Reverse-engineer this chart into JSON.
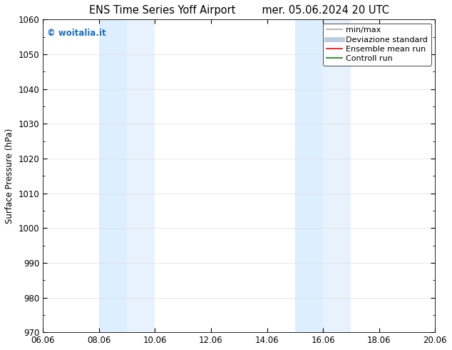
{
  "title": "ENS Time Series Yoff Airport        mer. 05.06.2024 20 UTC",
  "ylabel": "Surface Pressure (hPa)",
  "ylim": [
    970,
    1060
  ],
  "yticks": [
    970,
    980,
    990,
    1000,
    1010,
    1020,
    1030,
    1040,
    1050,
    1060
  ],
  "xlim": [
    0,
    14
  ],
  "xtick_labels": [
    "06.06",
    "08.06",
    "10.06",
    "12.06",
    "14.06",
    "16.06",
    "18.06",
    "20.06"
  ],
  "xtick_positions": [
    0,
    2,
    4,
    6,
    8,
    10,
    12,
    14
  ],
  "shaded_bands": [
    {
      "xmin": 2,
      "xmax": 3,
      "color": "#ddeeff"
    },
    {
      "xmin": 3,
      "xmax": 4,
      "color": "#e8f2fc"
    },
    {
      "xmin": 9,
      "xmax": 10,
      "color": "#ddeeff"
    },
    {
      "xmin": 10,
      "xmax": 11,
      "color": "#e8f2fc"
    }
  ],
  "watermark": "© woitalia.it",
  "watermark_color": "#1a6fbf",
  "legend_items": [
    {
      "label": "min/max",
      "color": "#aaaaaa",
      "lw": 1.2,
      "style": "solid"
    },
    {
      "label": "Deviazione standard",
      "color": "#bbccdd",
      "lw": 5,
      "style": "solid"
    },
    {
      "label": "Ensemble mean run",
      "color": "red",
      "lw": 1.2,
      "style": "solid"
    },
    {
      "label": "Controll run",
      "color": "green",
      "lw": 1.2,
      "style": "solid"
    }
  ],
  "bg_color": "#ffffff",
  "grid_color": "#dddddd",
  "font_size": 8.5,
  "title_font_size": 10.5
}
